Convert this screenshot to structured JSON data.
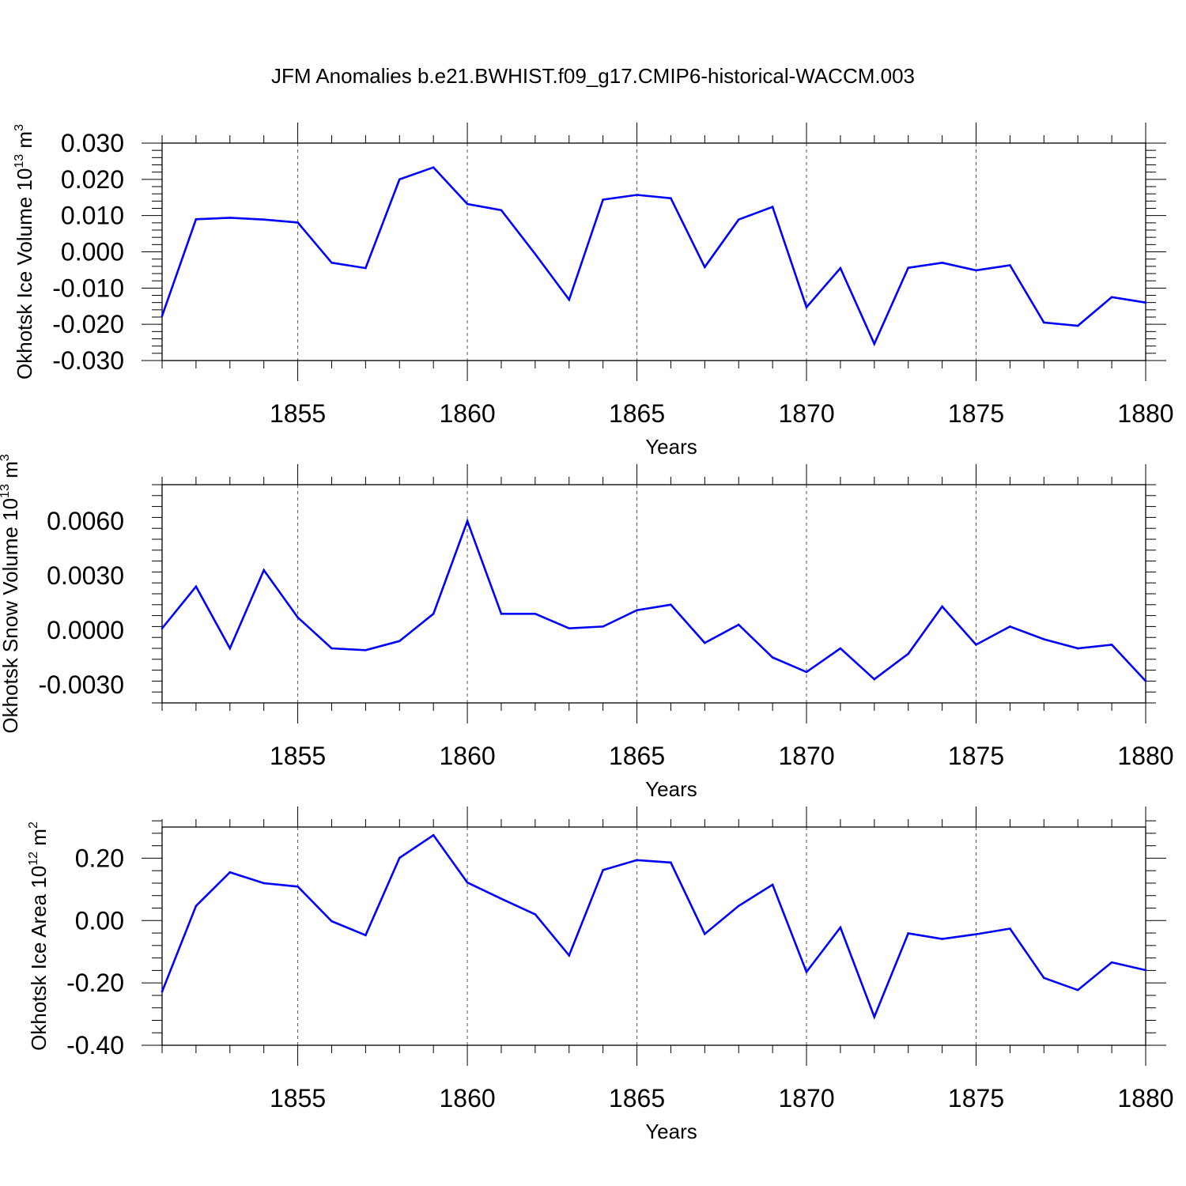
{
  "figure": {
    "title": "JFM Anomalies b.e21.BWHIST.f09_g17.CMIP6-historical-WACCM.003"
  },
  "colors": {
    "line": "#0000ff",
    "axis": "#000000",
    "grid": "#555555"
  },
  "chart_data": [
    {
      "type": "line",
      "title": "JFM Anomalies b.e21.BWHIST.f09_g17.CMIP6-historical-WACCM.003",
      "xlabel": "Years",
      "ylabel": "Okhotsk Ice Volume",
      "ylabel_units": "10^13 m^3",
      "ylabel_unit_base_1": "10",
      "ylabel_unit_exp_1": "13",
      "ylabel_unit_base_2": "m",
      "ylabel_unit_exp_2": "3",
      "xlim": [
        1851,
        1880
      ],
      "ylim": [
        -0.03,
        0.03
      ],
      "xticks": [
        1855,
        1860,
        1865,
        1870,
        1875,
        1880
      ],
      "xtick_labels": [
        "1855",
        "1860",
        "1865",
        "1870",
        "1875",
        "1880"
      ],
      "yticks": [
        0.03,
        0.02,
        0.01,
        0.0,
        -0.01,
        -0.02,
        -0.03
      ],
      "ytick_labels": [
        "0.030",
        "0.020",
        "0.010",
        "0.000",
        "-0.010",
        "-0.020",
        "-0.030"
      ],
      "grid": "vertical dashed at labeled years",
      "x": [
        1851,
        1852,
        1853,
        1854,
        1855,
        1856,
        1857,
        1858,
        1859,
        1860,
        1861,
        1862,
        1863,
        1864,
        1865,
        1866,
        1867,
        1868,
        1869,
        1870,
        1871,
        1872,
        1873,
        1874,
        1875,
        1876,
        1877,
        1878,
        1879,
        1880
      ],
      "series": [
        {
          "values": [
            -0.0177,
            0.009,
            0.0094,
            0.0089,
            0.0081,
            -0.003,
            -0.0045,
            0.02,
            0.0233,
            0.0132,
            0.0115,
            -0.0006,
            -0.0132,
            0.0144,
            0.0157,
            0.0148,
            -0.0042,
            0.0089,
            0.0124,
            -0.0153,
            -0.0045,
            -0.0254,
            -0.0044,
            -0.003,
            -0.0051,
            -0.0037,
            -0.0195,
            -0.0204,
            -0.0125,
            -0.014
          ]
        }
      ]
    },
    {
      "type": "line",
      "xlabel": "Years",
      "ylabel": "Okhotsk Snow Volume",
      "ylabel_units": "10^13 m^3",
      "ylabel_unit_base_1": "10",
      "ylabel_unit_exp_1": "13",
      "ylabel_unit_base_2": "m",
      "ylabel_unit_exp_2": "3",
      "xlim": [
        1851,
        1880
      ],
      "ylim": [
        -0.004,
        0.008
      ],
      "xticks": [
        1855,
        1860,
        1865,
        1870,
        1875,
        1880
      ],
      "xtick_labels": [
        "1855",
        "1860",
        "1865",
        "1870",
        "1875",
        "1880"
      ],
      "yticks": [
        0.006,
        0.003,
        0.0,
        -0.003
      ],
      "ytick_labels": [
        "0.0060",
        "0.0030",
        "0.0000",
        "-0.0030"
      ],
      "grid": "vertical dashed at labeled years",
      "x": [
        1851,
        1852,
        1853,
        1854,
        1855,
        1856,
        1857,
        1858,
        1859,
        1860,
        1861,
        1862,
        1863,
        1864,
        1865,
        1866,
        1867,
        1868,
        1869,
        1870,
        1871,
        1872,
        1873,
        1874,
        1875,
        1876,
        1877,
        1878,
        1879,
        1880
      ],
      "series": [
        {
          "values": [
            0.0001,
            0.0024,
            -0.001,
            0.0033,
            0.0007,
            -0.001,
            -0.0011,
            -0.0006,
            0.0009,
            0.006,
            0.0009,
            0.0009,
            0.0001,
            0.0002,
            0.0011,
            0.0014,
            -0.0007,
            0.0003,
            -0.0015,
            -0.0023,
            -0.001,
            -0.0027,
            -0.0013,
            0.0013,
            -0.0008,
            0.0002,
            -0.0005,
            -0.001,
            -0.0008,
            -0.0028
          ]
        }
      ]
    },
    {
      "type": "line",
      "xlabel": "Years",
      "ylabel": "Okhotsk Ice Area",
      "ylabel_units": "10^12 m^2",
      "ylabel_unit_base_1": "10",
      "ylabel_unit_exp_1": "12",
      "ylabel_unit_base_2": "m",
      "ylabel_unit_exp_2": "2",
      "xlim": [
        1851,
        1880
      ],
      "ylim": [
        -0.4,
        0.3
      ],
      "xticks": [
        1855,
        1860,
        1865,
        1870,
        1875,
        1880
      ],
      "xtick_labels": [
        "1855",
        "1860",
        "1865",
        "1870",
        "1875",
        "1880"
      ],
      "yticks": [
        0.2,
        0.0,
        -0.2,
        -0.4
      ],
      "ytick_labels": [
        "0.20",
        "0.00",
        "-0.20",
        "-0.40"
      ],
      "grid": "vertical dashed at labeled years",
      "x": [
        1851,
        1852,
        1853,
        1854,
        1855,
        1856,
        1857,
        1858,
        1859,
        1860,
        1861,
        1862,
        1863,
        1864,
        1865,
        1866,
        1867,
        1868,
        1869,
        1870,
        1871,
        1872,
        1873,
        1874,
        1875,
        1876,
        1877,
        1878,
        1879,
        1880
      ],
      "series": [
        {
          "values": [
            -0.228,
            0.047,
            0.155,
            0.12,
            0.109,
            -0.002,
            -0.047,
            0.201,
            0.274,
            0.122,
            0.07,
            0.02,
            -0.112,
            0.162,
            0.194,
            0.186,
            -0.043,
            0.047,
            0.115,
            -0.165,
            -0.022,
            -0.309,
            -0.041,
            -0.059,
            -0.044,
            -0.026,
            -0.184,
            -0.223,
            -0.134,
            -0.159
          ]
        }
      ]
    }
  ]
}
